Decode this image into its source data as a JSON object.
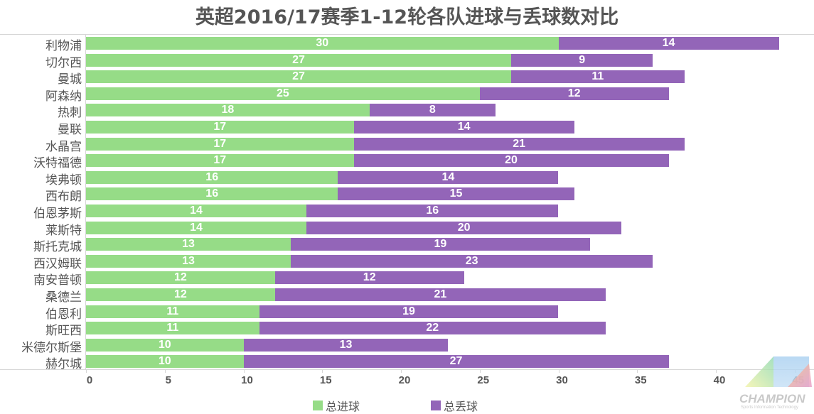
{
  "title": "英超2016/17赛季1-12轮各队进球与丢球数对比",
  "colors": {
    "goals_for": "#96dc87",
    "goals_against": "#9365b8"
  },
  "legend": [
    {
      "label": "总进球",
      "color": "#96dc87"
    },
    {
      "label": "总丢球",
      "color": "#9365b8"
    }
  ],
  "watermark": {
    "text": "CHAMPION",
    "subtitle": "Sports Information Technology"
  },
  "chart_data": {
    "type": "bar",
    "orientation": "horizontal",
    "stacked": true,
    "title": "英超2016/17赛季1-12轮各队进球与丢球数对比",
    "xlabel": "",
    "ylabel": "",
    "xlim": [
      0,
      45
    ],
    "x_ticks": [
      0,
      5,
      10,
      15,
      20,
      25,
      30,
      35,
      40,
      45
    ],
    "legend_position": "bottom",
    "grid": false,
    "categories": [
      "利物浦",
      "切尔西",
      "曼城",
      "阿森纳",
      "热刺",
      "曼联",
      "水晶宫",
      "沃特福德",
      "埃弗顿",
      "西布朗",
      "伯恩茅斯",
      "莱斯特",
      "斯托克城",
      "西汉姆联",
      "南安普顿",
      "桑德兰",
      "伯恩利",
      "斯旺西",
      "米德尔斯堡",
      "赫尔城"
    ],
    "series": [
      {
        "name": "总进球",
        "color": "#96dc87",
        "values": [
          30,
          27,
          27,
          25,
          18,
          17,
          17,
          17,
          16,
          16,
          14,
          14,
          13,
          13,
          12,
          12,
          11,
          11,
          10,
          10
        ]
      },
      {
        "name": "总丢球",
        "color": "#9365b8",
        "values": [
          14,
          9,
          11,
          12,
          8,
          14,
          21,
          20,
          14,
          15,
          16,
          20,
          19,
          23,
          12,
          21,
          19,
          22,
          13,
          27
        ]
      }
    ]
  }
}
